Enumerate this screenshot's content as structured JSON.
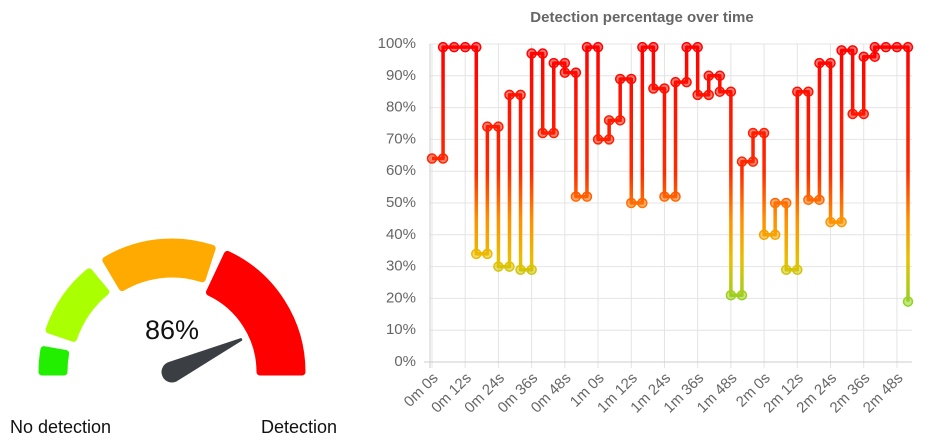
{
  "chart_data": [
    {
      "type": "gauge",
      "value": 86,
      "value_label": "86%",
      "range": [
        0,
        100
      ],
      "min_label": "No detection",
      "max_label": "Detection",
      "band_colors": [
        "#22ee00",
        "#aaff00",
        "#ffaa00",
        "#ff0000"
      ],
      "needle_color": "#3b3f44"
    },
    {
      "type": "line",
      "title": "Detection percentage over time",
      "x": [
        0,
        4,
        4,
        8,
        12,
        16,
        16,
        20,
        20,
        24,
        24,
        28,
        28,
        32,
        32,
        36,
        36,
        40,
        40,
        44,
        44,
        48,
        48,
        52,
        52,
        56,
        56,
        60,
        60,
        64,
        64,
        68,
        68,
        72,
        72,
        76,
        76,
        80,
        80,
        84,
        84,
        88,
        88,
        92,
        92,
        96,
        96,
        100,
        100,
        104,
        104,
        108,
        108,
        112,
        112,
        116,
        116,
        120,
        120,
        124,
        124,
        128,
        128,
        132,
        132,
        136,
        136,
        140,
        140,
        144,
        144,
        148,
        148,
        152,
        152,
        156,
        156,
        160,
        160,
        164,
        168,
        172,
        172
      ],
      "values": [
        64,
        64,
        99,
        99,
        99,
        99,
        34,
        34,
        74,
        74,
        30,
        30,
        84,
        84,
        29,
        29,
        97,
        97,
        72,
        72,
        94,
        94,
        91,
        91,
        52,
        52,
        99,
        99,
        70,
        70,
        76,
        76,
        89,
        89,
        50,
        50,
        99,
        99,
        86,
        86,
        52,
        52,
        88,
        88,
        99,
        99,
        84,
        84,
        90,
        90,
        85,
        85,
        21,
        21,
        63,
        63,
        72,
        72,
        40,
        40,
        50,
        50,
        29,
        29,
        85,
        85,
        51,
        51,
        94,
        94,
        44,
        44,
        98,
        98,
        78,
        78,
        96,
        96,
        99,
        99,
        99,
        99,
        19
      ],
      "xlim": [
        0,
        172
      ],
      "xticks": [
        {
          "value": 0,
          "label": "0m 0s"
        },
        {
          "value": 12,
          "label": "0m 12s"
        },
        {
          "value": 24,
          "label": "0m 24s"
        },
        {
          "value": 36,
          "label": "0m 36s"
        },
        {
          "value": 48,
          "label": "0m 48s"
        },
        {
          "value": 60,
          "label": "1m 0s"
        },
        {
          "value": 72,
          "label": "1m 12s"
        },
        {
          "value": 84,
          "label": "1m 24s"
        },
        {
          "value": 96,
          "label": "1m 36s"
        },
        {
          "value": 108,
          "label": "1m 48s"
        },
        {
          "value": 120,
          "label": "2m 0s"
        },
        {
          "value": 132,
          "label": "2m 12s"
        },
        {
          "value": 144,
          "label": "2m 24s"
        },
        {
          "value": 156,
          "label": "2m 36s"
        },
        {
          "value": 168,
          "label": "2m 48s"
        }
      ],
      "ylim": [
        0,
        100
      ],
      "yticks": [
        {
          "value": 0,
          "label": "0%"
        },
        {
          "value": 10,
          "label": "10%"
        },
        {
          "value": 20,
          "label": "20%"
        },
        {
          "value": 30,
          "label": "30%"
        },
        {
          "value": 40,
          "label": "40%"
        },
        {
          "value": 50,
          "label": "50%"
        },
        {
          "value": 60,
          "label": "60%"
        },
        {
          "value": 70,
          "label": "70%"
        },
        {
          "value": 80,
          "label": "80%"
        },
        {
          "value": 90,
          "label": "90%"
        },
        {
          "value": 100,
          "label": "100%"
        }
      ],
      "grid": true
    }
  ]
}
